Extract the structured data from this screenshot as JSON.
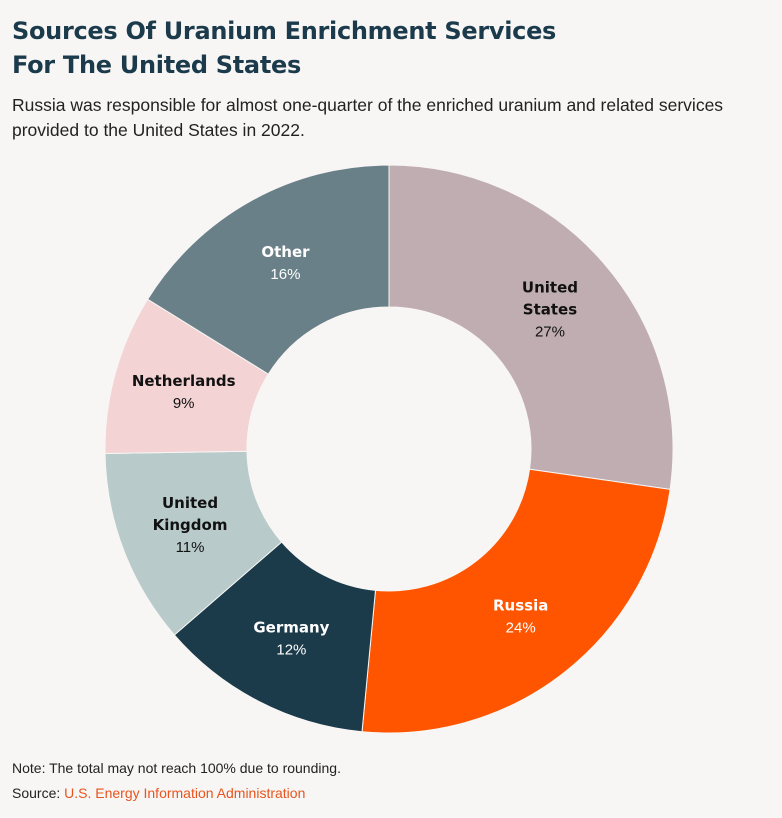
{
  "header": {
    "title_line1": "Sources Of Uranium Enrichment Services",
    "title_line2": "For The United States",
    "subtitle": "Russia was responsible for almost one-quarter of the enriched uranium and related services provided to the United States in 2022."
  },
  "footer": {
    "note": "Note: The total may not reach 100% due to rounding.",
    "source_prefix": "Source:",
    "source_link": "U.S. Energy Information Administration"
  },
  "chart_data": {
    "type": "pie",
    "variant": "donut",
    "title": "Sources Of Uranium Enrichment Services For The United States",
    "slices": [
      {
        "label": [
          "United",
          "States"
        ],
        "value": 27,
        "value_label": "27%",
        "color": "#bfadb1",
        "text_color": "#111111"
      },
      {
        "label": [
          "Russia"
        ],
        "value": 24,
        "value_label": "24%",
        "color": "#ff5500",
        "text_color": "#ffffff"
      },
      {
        "label": [
          "Germany"
        ],
        "value": 12,
        "value_label": "12%",
        "color": "#1b3a4a",
        "text_color": "#ffffff"
      },
      {
        "label": [
          "United",
          "Kingdom"
        ],
        "value": 11,
        "value_label": "11%",
        "color": "#b8cbca",
        "text_color": "#111111"
      },
      {
        "label": [
          "Netherlands"
        ],
        "value": 9,
        "value_label": "9%",
        "color": "#f3d3d4",
        "text_color": "#111111"
      },
      {
        "label": [
          "Other"
        ],
        "value": 16,
        "value_label": "16%",
        "color": "#6a8088",
        "text_color": "#ffffff"
      }
    ],
    "legend": "none (labels on slices)"
  }
}
